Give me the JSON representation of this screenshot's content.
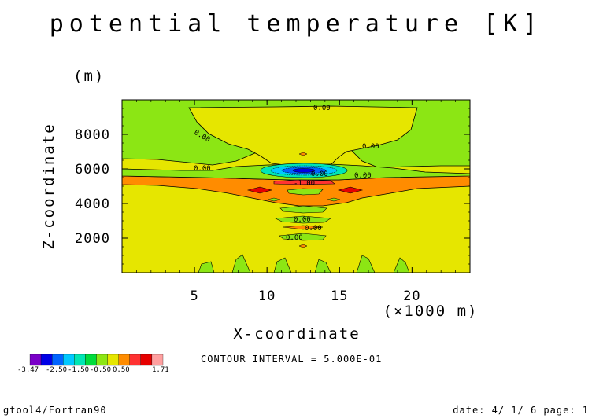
{
  "chart_data": {
    "type": "heatmap",
    "title": "potential temperature [K]",
    "xlabel": "X-coordinate",
    "ylabel": "Z-coordinate",
    "x_unit": "(×1000 m)",
    "y_unit": "(m)",
    "xlim": [
      0,
      24
    ],
    "ylim": [
      0,
      10000
    ],
    "x_ticks": [
      5,
      10,
      15,
      20
    ],
    "y_ticks": [
      2000,
      4000,
      6000,
      8000
    ],
    "contour_interval": "CONTOUR INTERVAL = 5.000E-01",
    "contour_labels": [
      "0.00",
      "0.00",
      "0.00",
      "0.00",
      "0.00",
      "0.00",
      "-1.00",
      "0.00",
      "0.00",
      "0.00"
    ],
    "colorbar": {
      "colors": [
        "#7a00c8",
        "#0000e6",
        "#0064ff",
        "#00c8ff",
        "#00e6b4",
        "#00dc3c",
        "#8ce614",
        "#e6e600",
        "#ff8c00",
        "#ff3232",
        "#e60000",
        "#ffa0a0"
      ],
      "tick_labels": [
        "-3.47",
        "-2.50",
        "-1.50",
        "-0.50",
        "0.50",
        "1.71"
      ]
    }
  },
  "footer": {
    "left": "gtool4/Fortran90",
    "right": "date: 4/ 1/ 6 page: 1"
  }
}
